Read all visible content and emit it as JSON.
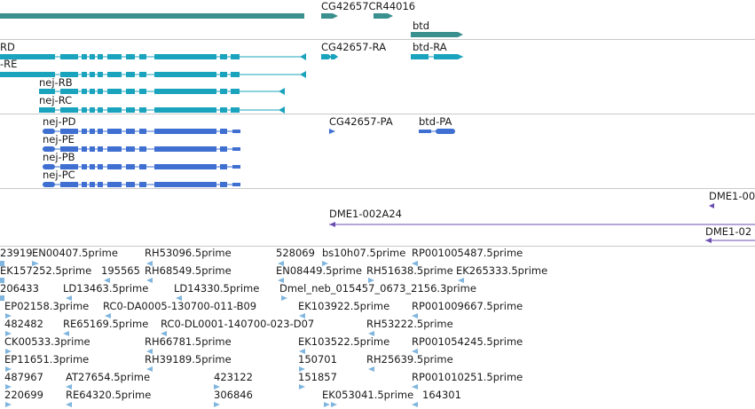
{
  "colors": {
    "gene": "#3a8f8f",
    "transcript": "#1aa3bd",
    "protein": "#3e6fd1",
    "clone": "#6a4fb0",
    "est": "#7fb5de",
    "separator": "#c9c9c9",
    "text": "#1a1a1a"
  },
  "genes": {
    "cg42657_cr44016": "CG42657CR44016",
    "btd": "btd"
  },
  "transcripts": {
    "rd": "RD",
    "re": "-RE",
    "nej_rb": "nej-RB",
    "nej_rc": "nej-RC",
    "cg42657_ra": "CG42657-RA",
    "btd_ra": "btd-RA"
  },
  "proteins": {
    "nej_pd": "nej-PD",
    "nej_pe": "nej-PE",
    "nej_pb": "nej-PB",
    "nej_pc": "nej-PC",
    "cg42657_pa": "CG42657-PA",
    "btd_pa": "btd-PA"
  },
  "clones": {
    "dme1_00": "DME1-00",
    "dme1_002a24": "DME1-002A24",
    "dme1_02": "DME1-02"
  },
  "ests": [
    "23919",
    "EN00407.5prime",
    "RH53096.5prime",
    "528069",
    "bs10h07.5prime",
    "RP001005487.5prime",
    "EK157252.5prime",
    "195565",
    "RH68549.5prime",
    "EN08449.5prime",
    "RH51638.5prime",
    "EK265333.5prime",
    "206433",
    "LD13463.5prime",
    "LD14330.5prime",
    "Dmel_neb_015457_0673_2156.3prime",
    "EP02158.3prime",
    "RC0-DA0005-130700-011-B09",
    "EK103922.5prime",
    "RP001009667.5prime",
    "482482",
    "RE65169.5prime",
    "RC0-DL0001-140700-023-D07",
    "RH53222.5prime",
    "CK00533.3prime",
    "RH66781.5prime",
    "EK103522.5prime",
    "RP001054245.5prime",
    "EP11651.3prime",
    "RH39189.5prime",
    "150701",
    "RH25639.5prime",
    "487967",
    "AT27654.5prime",
    "423122",
    "151857",
    "RP001010251.5prime",
    "220699",
    "RE64320.5prime",
    "306846",
    "EK053041.5prime",
    "164301"
  ]
}
